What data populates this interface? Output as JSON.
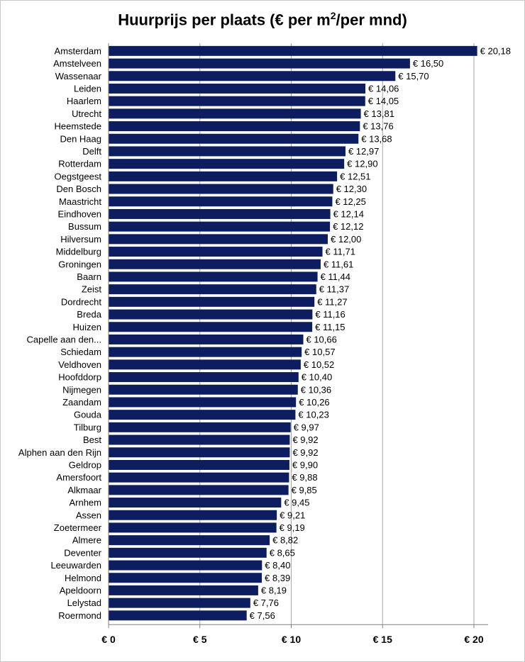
{
  "title": {
    "main": "Huurprijs per plaats  (€ per m",
    "sup": "2",
    "tail": "/per mnd)"
  },
  "colors": {
    "bar": "#0c1e5f",
    "grid": "#a6a6a6",
    "axis": "#808080"
  },
  "chart_data": {
    "type": "bar",
    "orientation": "horizontal",
    "title": "Huurprijs per plaats  (€ per m2/per mnd)",
    "xlabel": "",
    "ylabel": "",
    "xlim": [
      0,
      20
    ],
    "xticks": [
      0,
      5,
      10,
      15,
      20
    ],
    "xtick_labels": [
      "€ 0",
      "€ 5",
      "€ 10",
      "€ 15",
      "€ 20"
    ],
    "grid": true,
    "legend": "none",
    "categories": [
      "Amsterdam",
      "Amstelveen",
      "Wassenaar",
      "Leiden",
      "Haarlem",
      "Utrecht",
      "Heemstede",
      "Den Haag",
      "Delft",
      "Rotterdam",
      "Oegstgeest",
      "Den Bosch",
      "Maastricht",
      "Eindhoven",
      "Bussum",
      "Hilversum",
      "Middelburg",
      "Groningen",
      "Baarn",
      "Zeist",
      "Dordrecht",
      "Breda",
      "Huizen",
      "Capelle aan den...",
      "Schiedam",
      "Veldhoven",
      "Hoofddorp",
      "Nijmegen",
      "Zaandam",
      "Gouda",
      "Tilburg",
      "Best",
      "Alphen aan den Rijn",
      "Geldrop",
      "Amersfoort",
      "Alkmaar",
      "Arnhem",
      "Assen",
      "Zoetermeer",
      "Almere",
      "Deventer",
      "Leeuwarden",
      "Helmond",
      "Apeldoorn",
      "Lelystad",
      "Roermond"
    ],
    "values": [
      20.18,
      16.5,
      15.7,
      14.06,
      14.05,
      13.81,
      13.76,
      13.68,
      12.97,
      12.9,
      12.51,
      12.3,
      12.25,
      12.14,
      12.12,
      12.0,
      11.71,
      11.61,
      11.44,
      11.37,
      11.27,
      11.16,
      11.15,
      10.66,
      10.57,
      10.52,
      10.4,
      10.36,
      10.26,
      10.23,
      9.97,
      9.92,
      9.92,
      9.9,
      9.88,
      9.85,
      9.45,
      9.21,
      9.19,
      8.82,
      8.65,
      8.4,
      8.39,
      8.19,
      7.76,
      7.56
    ],
    "data_labels": [
      "€ 20,18",
      "€ 16,50",
      "€ 15,70",
      "€ 14,06",
      "€ 14,05",
      "€ 13,81",
      "€ 13,76",
      "€ 13,68",
      "€ 12,97",
      "€ 12,90",
      "€ 12,51",
      "€ 12,30",
      "€ 12,25",
      "€ 12,14",
      "€ 12,12",
      "€ 12,00",
      "€ 11,71",
      "€ 11,61",
      "€ 11,44",
      "€ 11,37",
      "€ 11,27",
      "€ 11,16",
      "€ 11,15",
      "€ 10,66",
      "€ 10,57",
      "€ 10,52",
      "€ 10,40",
      "€ 10,36",
      "€ 10,26",
      "€ 10,23",
      "€ 9,97",
      "€ 9,92",
      "€ 9,92",
      "€ 9,90",
      "€ 9,88",
      "€ 9,85",
      "€ 9,45",
      "€ 9,21",
      "€ 9,19",
      "€ 8,82",
      "€ 8,65",
      "€ 8,40",
      "€ 8,39",
      "€ 8,19",
      "€ 7,76",
      "€ 7,56"
    ]
  }
}
